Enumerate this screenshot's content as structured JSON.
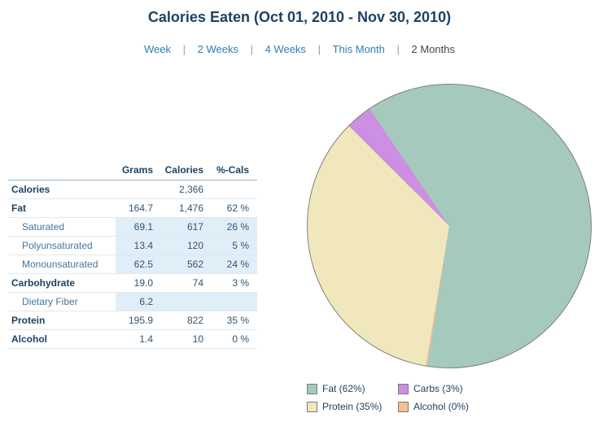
{
  "header": {
    "title": "Calories Eaten (Oct 01, 2010 - Nov 30, 2010)"
  },
  "nav": {
    "separator": "|",
    "items": [
      {
        "label": "Week"
      },
      {
        "label": "2 Weeks"
      },
      {
        "label": "4 Weeks"
      },
      {
        "label": "This Month"
      },
      {
        "label": "2 Months"
      }
    ]
  },
  "table": {
    "headers": {
      "grams": "Grams",
      "calories": "Calories",
      "pcals": "%-Cals"
    },
    "rows": [
      {
        "label": "Calories",
        "grams": "",
        "calories": "2,366",
        "pcals": ""
      },
      {
        "label": "Fat",
        "grams": "164.7",
        "calories": "1,476",
        "pcals": "62 %"
      },
      {
        "label": "Saturated",
        "grams": "69.1",
        "calories": "617",
        "pcals": "26 %"
      },
      {
        "label": "Polyunsaturated",
        "grams": "13.4",
        "calories": "120",
        "pcals": "5 %"
      },
      {
        "label": "Monounsaturated",
        "grams": "62.5",
        "calories": "562",
        "pcals": "24 %"
      },
      {
        "label": "Carbohydrate",
        "grams": "19.0",
        "calories": "74",
        "pcals": "3 %"
      },
      {
        "label": "Dietary Fiber",
        "grams": "6.2",
        "calories": "",
        "pcals": ""
      },
      {
        "label": "Protein",
        "grams": "195.9",
        "calories": "822",
        "pcals": "35 %"
      },
      {
        "label": "Alcohol",
        "grams": "1.4",
        "calories": "10",
        "pcals": "0 %"
      }
    ]
  },
  "chart_data": {
    "type": "pie",
    "title": "Calories Eaten (Oct 01, 2010 - Nov 30, 2010)",
    "legend_position": "bottom",
    "slices": [
      {
        "name": "Fat",
        "percent": 62,
        "color": "#a5c9bd",
        "legend_label": "Fat  (62%)"
      },
      {
        "name": "Carbs",
        "percent": 3,
        "color": "#cd8fe2",
        "legend_label": "Carbs  (3%)"
      },
      {
        "name": "Protein",
        "percent": 35,
        "color": "#f1e7bd",
        "legend_label": "Protein  (35%)"
      },
      {
        "name": "Alcohol",
        "percent": 0,
        "color": "#f3c193",
        "legend_label": "Alcohol  (0%)"
      }
    ]
  }
}
